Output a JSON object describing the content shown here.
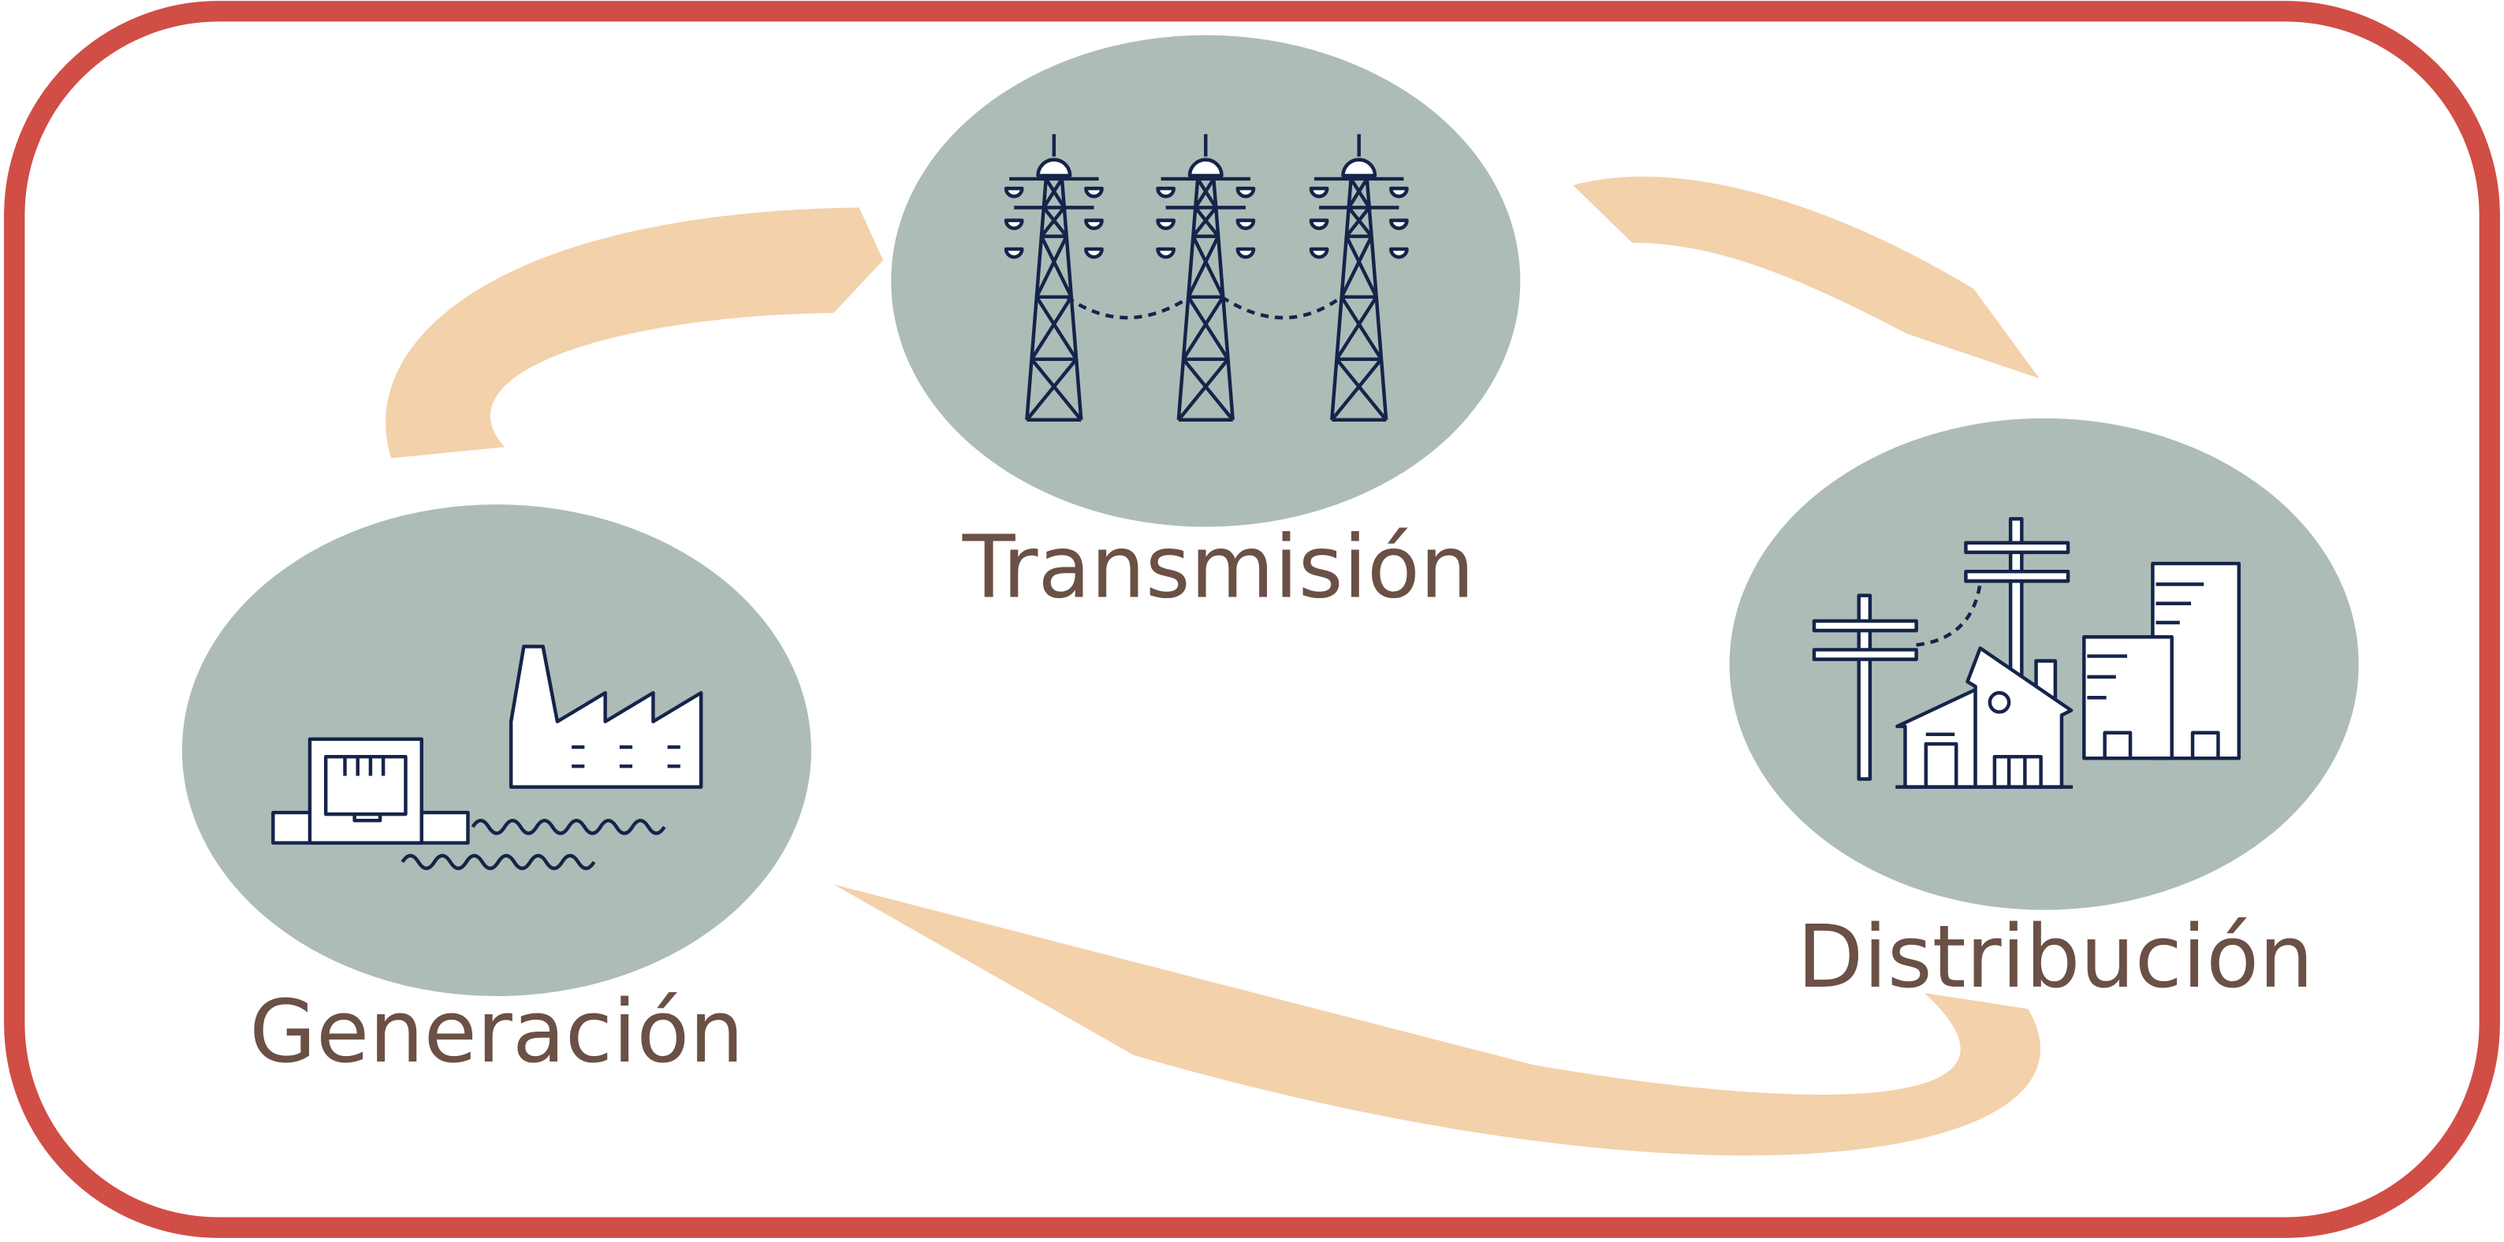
{
  "nodes": [
    {
      "label": "Transmisión"
    },
    {
      "label": "Distribución"
    },
    {
      "label": "Generación"
    }
  ]
}
